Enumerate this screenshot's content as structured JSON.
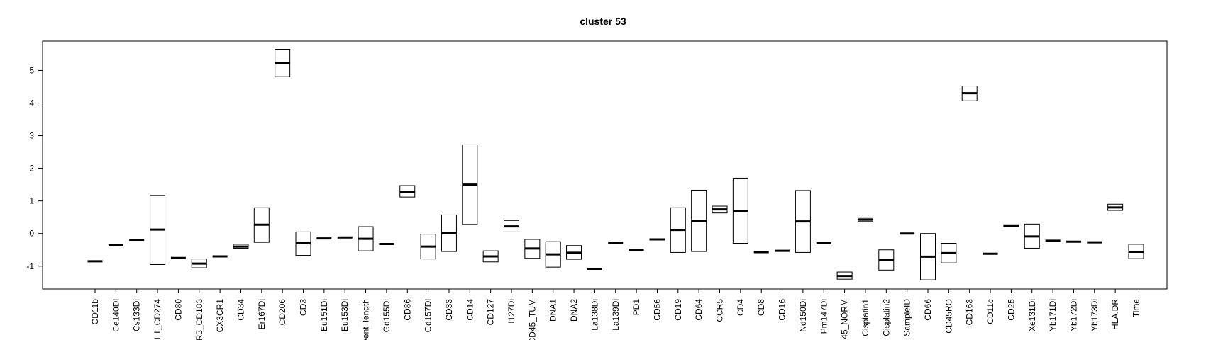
{
  "chart_data": {
    "type": "boxplot",
    "title": "cluster 53",
    "xlabel": "",
    "ylabel": "",
    "ylim": [
      -1.7,
      5.9
    ],
    "yticks": [
      -1,
      0,
      1,
      2,
      3,
      4,
      5
    ],
    "grid": false,
    "categories": [
      "CD11b",
      "Ce140Di",
      "Cs133Di",
      "L1_CD274",
      "CD80",
      "R3_CD183",
      "CX3CR1",
      "CD34",
      "Er167Di",
      "CD206",
      "CD3",
      "Eu151Di",
      "Eu153Di",
      "vent_length",
      "Gd155Di",
      "CD86",
      "Gd157Di",
      "CD33",
      "CD14",
      "CD127",
      "I127Di",
      "CD45_TUM",
      "DNA1",
      "DNA2",
      "La138Di",
      "La139Di",
      "PD1",
      "CD56",
      "CD19",
      "CD64",
      "CCR5",
      "CD4",
      "CD8",
      "CD16",
      "Nd150Di",
      "Pm147Di",
      "45_NORM",
      "Cisplatin1",
      "Cisplatin2",
      "SampleID",
      "CD66",
      "CD45RO",
      "CD163",
      "CD11c",
      "CD25",
      "Xe131Di",
      "Yb171Di",
      "Yb172Di",
      "Yb173Di",
      "HLA.DR",
      "Time"
    ],
    "boxes": [
      {
        "q1": -0.85,
        "median": -0.85,
        "q3": -0.85
      },
      {
        "q1": -0.36,
        "median": -0.36,
        "q3": -0.36
      },
      {
        "q1": -0.19,
        "median": -0.19,
        "q3": -0.19
      },
      {
        "q1": -0.95,
        "median": 0.12,
        "q3": 1.17
      },
      {
        "q1": -0.75,
        "median": -0.75,
        "q3": -0.75
      },
      {
        "q1": -1.05,
        "median": -0.92,
        "q3": -0.78
      },
      {
        "q1": -0.7,
        "median": -0.7,
        "q3": -0.7
      },
      {
        "q1": -0.45,
        "median": -0.4,
        "q3": -0.33
      },
      {
        "q1": -0.27,
        "median": 0.27,
        "q3": 0.79
      },
      {
        "q1": 4.81,
        "median": 5.22,
        "q3": 5.65
      },
      {
        "q1": -0.67,
        "median": -0.3,
        "q3": 0.05
      },
      {
        "q1": -0.15,
        "median": -0.15,
        "q3": -0.15
      },
      {
        "q1": -0.12,
        "median": -0.12,
        "q3": -0.12
      },
      {
        "q1": -0.53,
        "median": -0.16,
        "q3": 0.21
      },
      {
        "q1": -0.32,
        "median": -0.32,
        "q3": -0.32
      },
      {
        "q1": 1.12,
        "median": 1.28,
        "q3": 1.47
      },
      {
        "q1": -0.78,
        "median": -0.4,
        "q3": -0.02
      },
      {
        "q1": -0.55,
        "median": 0.01,
        "q3": 0.57
      },
      {
        "q1": 0.28,
        "median": 1.5,
        "q3": 2.72
      },
      {
        "q1": -0.87,
        "median": -0.7,
        "q3": -0.53
      },
      {
        "q1": 0.05,
        "median": 0.22,
        "q3": 0.4
      },
      {
        "q1": -0.76,
        "median": -0.46,
        "q3": -0.18
      },
      {
        "q1": -1.03,
        "median": -0.64,
        "q3": -0.25
      },
      {
        "q1": -0.79,
        "median": -0.59,
        "q3": -0.37
      },
      {
        "q1": -1.08,
        "median": -1.08,
        "q3": -1.08
      },
      {
        "q1": -0.28,
        "median": -0.28,
        "q3": -0.28
      },
      {
        "q1": -0.5,
        "median": -0.5,
        "q3": -0.5
      },
      {
        "q1": -0.2,
        "median": -0.18,
        "q3": -0.16
      },
      {
        "q1": -0.58,
        "median": 0.11,
        "q3": 0.79
      },
      {
        "q1": -0.55,
        "median": 0.39,
        "q3": 1.33
      },
      {
        "q1": 0.63,
        "median": 0.74,
        "q3": 0.84
      },
      {
        "q1": -0.3,
        "median": 0.7,
        "q3": 1.7
      },
      {
        "q1": -0.57,
        "median": -0.57,
        "q3": -0.57
      },
      {
        "q1": -0.53,
        "median": -0.53,
        "q3": -0.53
      },
      {
        "q1": -0.58,
        "median": 0.37,
        "q3": 1.32
      },
      {
        "q1": -0.3,
        "median": -0.3,
        "q3": -0.3
      },
      {
        "q1": -1.4,
        "median": -1.3,
        "q3": -1.18
      },
      {
        "q1": 0.38,
        "median": 0.43,
        "q3": 0.5
      },
      {
        "q1": -1.12,
        "median": -0.81,
        "q3": -0.5
      },
      {
        "q1": 0.0,
        "median": 0.0,
        "q3": 0.0
      },
      {
        "q1": -1.42,
        "median": -0.71,
        "q3": 0.0
      },
      {
        "q1": -0.9,
        "median": -0.6,
        "q3": -0.3
      },
      {
        "q1": 4.07,
        "median": 4.3,
        "q3": 4.52
      },
      {
        "q1": -0.62,
        "median": -0.62,
        "q3": -0.62
      },
      {
        "q1": 0.21,
        "median": 0.24,
        "q3": 0.27
      },
      {
        "q1": -0.45,
        "median": -0.09,
        "q3": 0.29
      },
      {
        "q1": -0.22,
        "median": -0.22,
        "q3": -0.22
      },
      {
        "q1": -0.25,
        "median": -0.25,
        "q3": -0.25
      },
      {
        "q1": -0.27,
        "median": -0.27,
        "q3": -0.27
      },
      {
        "q1": 0.71,
        "median": 0.8,
        "q3": 0.9
      },
      {
        "q1": -0.77,
        "median": -0.56,
        "q3": -0.33
      }
    ]
  }
}
